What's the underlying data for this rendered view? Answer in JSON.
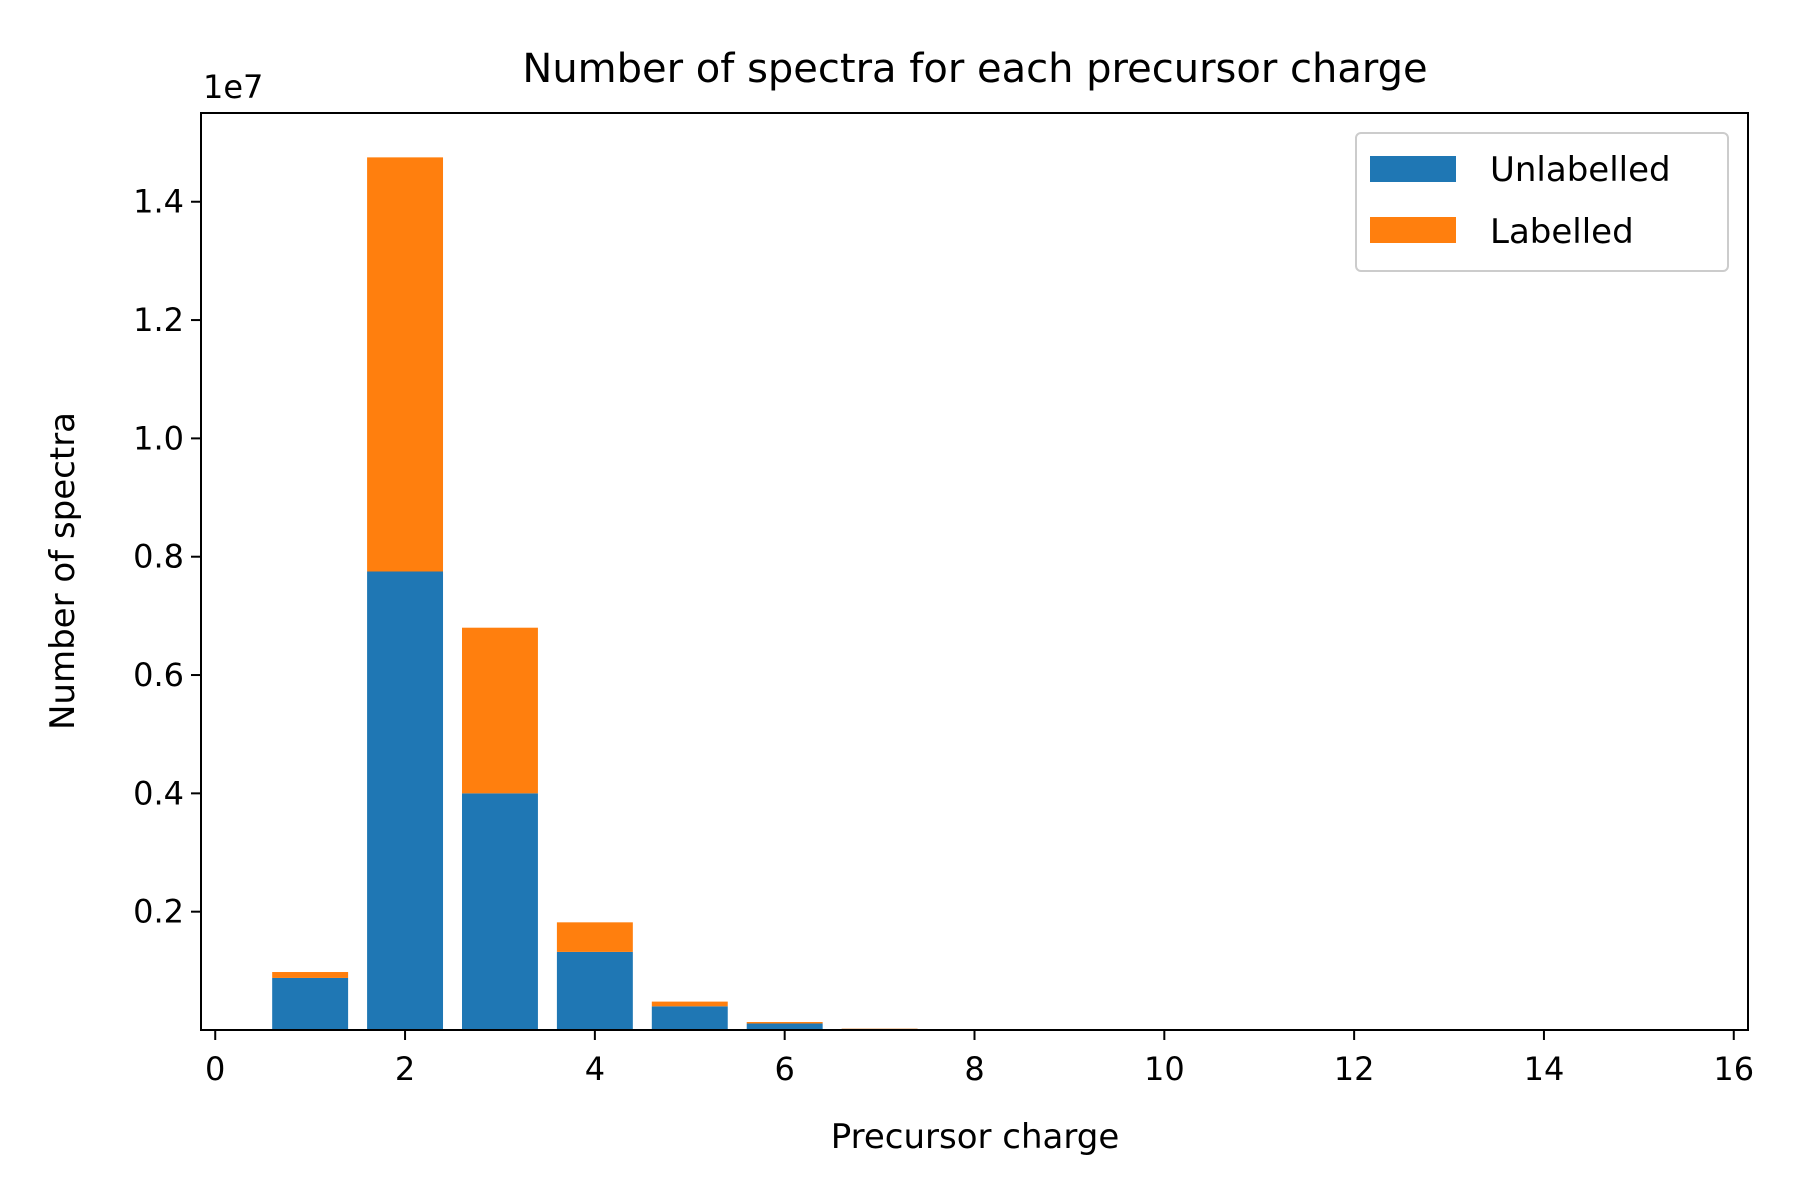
{
  "chart_data": {
    "type": "bar",
    "stacked": true,
    "title": "Number of spectra for each precursor charge",
    "xlabel": "Precursor charge",
    "ylabel": "Number of spectra",
    "y_offset_text": "1e7",
    "x": [
      1,
      2,
      3,
      4,
      5,
      6,
      7
    ],
    "xlim": [
      -0.15,
      16.15
    ],
    "ylim": [
      0,
      15500000
    ],
    "xticks": [
      0,
      2,
      4,
      6,
      8,
      10,
      12,
      14,
      16
    ],
    "yticks": [
      2000000,
      4000000,
      6000000,
      8000000,
      10000000,
      12000000,
      14000000
    ],
    "ytick_labels": [
      "0.2",
      "0.4",
      "0.6",
      "0.8",
      "1.0",
      "1.2",
      "1.4"
    ],
    "series": [
      {
        "name": "Unlabelled",
        "color": "#1f77b4",
        "values": [
          880000,
          7750000,
          4000000,
          1320000,
          400000,
          110000,
          20000
        ]
      },
      {
        "name": "Labelled",
        "color": "#ff7f0e",
        "values": [
          100000,
          7000000,
          2800000,
          500000,
          80000,
          25000,
          5000
        ]
      }
    ],
    "legend": {
      "position": "top-right"
    },
    "grid": false
  }
}
